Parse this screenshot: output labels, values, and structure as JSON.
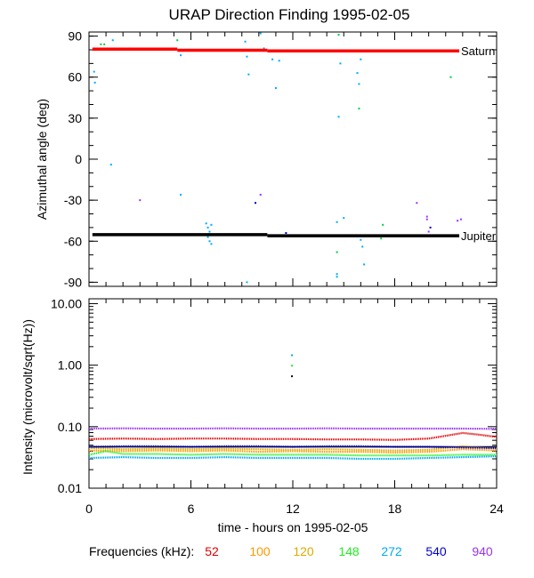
{
  "chart_data": [
    {
      "panel": "top",
      "type": "scatter",
      "title": "URAP Direction Finding  1995-02-05",
      "xlabel": "",
      "ylabel": "Azimuthal angle (deg)",
      "xlim": [
        0,
        24
      ],
      "ylim": [
        -93,
        93
      ],
      "yticks": [
        90,
        60,
        30,
        0,
        -30,
        -60,
        -90
      ],
      "yticks_minor_step": 10,
      "reference_lines": [
        {
          "name": "Saturn",
          "color": "#ff0000",
          "segments": [
            {
              "x": [
                0.2,
                5.2
              ],
              "y": 80.5
            },
            {
              "x": [
                5.2,
                10.5
              ],
              "y": 79.7
            },
            {
              "x": [
                10.5,
                21.8
              ],
              "y": 79.2
            }
          ]
        },
        {
          "name": "Jupiter",
          "color": "#000000",
          "segments": [
            {
              "x": [
                0.2,
                10.5
              ],
              "y": -55.2
            },
            {
              "x": [
                10.5,
                21.8
              ],
              "y": -56.0
            }
          ]
        }
      ],
      "points": [
        {
          "x": 0.3,
          "y": 64,
          "c": "#00aaff"
        },
        {
          "x": 0.35,
          "y": 56,
          "c": "#00aaff"
        },
        {
          "x": 0.7,
          "y": 84,
          "c": "#00cc44"
        },
        {
          "x": 0.9,
          "y": 84,
          "c": "#00cc44"
        },
        {
          "x": 1.4,
          "y": 87,
          "c": "#00aaff"
        },
        {
          "x": 1.3,
          "y": -4,
          "c": "#00aaff"
        },
        {
          "x": 2.4,
          "y": 81,
          "c": "#00aaff"
        },
        {
          "x": 3.0,
          "y": -30,
          "c": "#9933ff"
        },
        {
          "x": 5.2,
          "y": 87,
          "c": "#00cc44"
        },
        {
          "x": 5.4,
          "y": -26,
          "c": "#00aaff"
        },
        {
          "x": 5.4,
          "y": 76,
          "c": "#00aaff"
        },
        {
          "x": 6.9,
          "y": -47,
          "c": "#00aaff"
        },
        {
          "x": 7.0,
          "y": -50,
          "c": "#00aaff"
        },
        {
          "x": 7.1,
          "y": -53,
          "c": "#00aaff"
        },
        {
          "x": 7.0,
          "y": -57,
          "c": "#00aaff"
        },
        {
          "x": 7.1,
          "y": -60,
          "c": "#00aaff"
        },
        {
          "x": 7.2,
          "y": -48,
          "c": "#00aaff"
        },
        {
          "x": 7.2,
          "y": -62,
          "c": "#00aaff"
        },
        {
          "x": 9.2,
          "y": 86,
          "c": "#00aaff"
        },
        {
          "x": 9.3,
          "y": 75,
          "c": "#00aaff"
        },
        {
          "x": 9.4,
          "y": 62,
          "c": "#00aaff"
        },
        {
          "x": 9.3,
          "y": -90,
          "c": "#00aaff"
        },
        {
          "x": 9.8,
          "y": -32,
          "c": "#0000cc"
        },
        {
          "x": 10.1,
          "y": -26,
          "c": "#9933ff"
        },
        {
          "x": 10.1,
          "y": 92,
          "c": "#00aaff"
        },
        {
          "x": 10.3,
          "y": 81,
          "c": "#00aaff"
        },
        {
          "x": 10.8,
          "y": 73,
          "c": "#00aaff"
        },
        {
          "x": 11.2,
          "y": 72,
          "c": "#00aaff"
        },
        {
          "x": 11.0,
          "y": 52,
          "c": "#00aaff"
        },
        {
          "x": 11.6,
          "y": -54,
          "c": "#0000cc"
        },
        {
          "x": 14.7,
          "y": 91,
          "c": "#00cc44"
        },
        {
          "x": 14.6,
          "y": -46,
          "c": "#00aaff"
        },
        {
          "x": 15.0,
          "y": -43,
          "c": "#00aaff"
        },
        {
          "x": 14.8,
          "y": 70,
          "c": "#00aaff"
        },
        {
          "x": 14.7,
          "y": 31,
          "c": "#00aaff"
        },
        {
          "x": 14.6,
          "y": -68,
          "c": "#00cc44"
        },
        {
          "x": 14.6,
          "y": -84,
          "c": "#00aaff"
        },
        {
          "x": 14.6,
          "y": -86,
          "c": "#00aaff"
        },
        {
          "x": 15.8,
          "y": 63,
          "c": "#00aaff"
        },
        {
          "x": 15.9,
          "y": 55,
          "c": "#00aaff"
        },
        {
          "x": 15.9,
          "y": 37,
          "c": "#00cc44"
        },
        {
          "x": 16.0,
          "y": 73,
          "c": "#00aaff"
        },
        {
          "x": 16.0,
          "y": -59,
          "c": "#00aaff"
        },
        {
          "x": 16.1,
          "y": -64,
          "c": "#00aaff"
        },
        {
          "x": 16.2,
          "y": -77,
          "c": "#00aaff"
        },
        {
          "x": 17.3,
          "y": -48,
          "c": "#00cc44"
        },
        {
          "x": 17.2,
          "y": -58,
          "c": "#00cc44"
        },
        {
          "x": 19.3,
          "y": -32,
          "c": "#9933ff"
        },
        {
          "x": 19.9,
          "y": -42,
          "c": "#9933ff"
        },
        {
          "x": 19.9,
          "y": -44,
          "c": "#9933ff"
        },
        {
          "x": 20.1,
          "y": -50,
          "c": "#0000cc"
        },
        {
          "x": 20.0,
          "y": -53,
          "c": "#9933ff"
        },
        {
          "x": 21.3,
          "y": 60,
          "c": "#00cc44"
        },
        {
          "x": 21.7,
          "y": -45,
          "c": "#9933ff"
        },
        {
          "x": 21.9,
          "y": -44,
          "c": "#9933ff"
        }
      ]
    },
    {
      "panel": "bottom",
      "type": "line",
      "title": "",
      "xlabel": "time - hours on 1995-02-05",
      "ylabel": "Intensity (microvolt/sqrt(Hz))",
      "yscale": "log",
      "xlim": [
        0,
        24
      ],
      "ylim": [
        0.01,
        12
      ],
      "xticks": [
        "0",
        "6",
        "12",
        "18",
        "24"
      ],
      "yticks": [
        "10.00",
        "1.00",
        "0.10",
        "0.01"
      ],
      "legend_title": "Frequencies (kHz):",
      "series": [
        {
          "name": "52",
          "color": "#dd0000",
          "x": [
            0,
            2,
            4,
            6,
            8,
            10,
            12,
            14,
            16,
            18,
            20,
            21,
            22,
            23,
            24
          ],
          "y": [
            0.063,
            0.064,
            0.063,
            0.064,
            0.064,
            0.063,
            0.063,
            0.062,
            0.062,
            0.061,
            0.064,
            0.071,
            0.079,
            0.074,
            0.068
          ]
        },
        {
          "name": "100",
          "color": "#ff9900",
          "x": [
            0,
            2,
            4,
            6,
            8,
            10,
            12,
            14,
            16,
            18,
            20,
            21,
            22,
            23,
            24
          ],
          "y": [
            0.041,
            0.04,
            0.041,
            0.04,
            0.041,
            0.039,
            0.04,
            0.039,
            0.039,
            0.038,
            0.039,
            0.041,
            0.043,
            0.042,
            0.041
          ]
        },
        {
          "name": "120",
          "color": "#ddaa00",
          "x": [
            0,
            2,
            4,
            6,
            8,
            10,
            12,
            14,
            16,
            18,
            20,
            21,
            22,
            23,
            24
          ],
          "y": [
            0.045,
            0.043,
            0.044,
            0.043,
            0.044,
            0.043,
            0.042,
            0.043,
            0.042,
            0.041,
            0.042,
            0.045,
            0.048,
            0.046,
            0.044
          ]
        },
        {
          "name": "148",
          "color": "#22ee22",
          "x": [
            0,
            1,
            2,
            4,
            6,
            8,
            10,
            12,
            14,
            16,
            18,
            20,
            22,
            24
          ],
          "y": [
            0.035,
            0.04,
            0.036,
            0.036,
            0.035,
            0.036,
            0.035,
            0.035,
            0.035,
            0.034,
            0.034,
            0.034,
            0.035,
            0.035
          ]
        },
        {
          "name": "272",
          "color": "#00aaee",
          "x": [
            0,
            2,
            4,
            6,
            8,
            10,
            12,
            14,
            16,
            18,
            20,
            22,
            24
          ],
          "y": [
            0.031,
            0.032,
            0.031,
            0.031,
            0.032,
            0.031,
            0.031,
            0.031,
            0.03,
            0.03,
            0.031,
            0.032,
            0.033
          ]
        },
        {
          "name": "540",
          "color": "#0000cc",
          "x": [
            0,
            2,
            4,
            6,
            8,
            10,
            12,
            14,
            16,
            18,
            20,
            22,
            24
          ],
          "y": [
            0.047,
            0.048,
            0.048,
            0.047,
            0.048,
            0.048,
            0.047,
            0.048,
            0.048,
            0.047,
            0.047,
            0.046,
            0.045
          ]
        },
        {
          "name": "940",
          "color": "#9933ee",
          "x": [
            0,
            2,
            4,
            6,
            8,
            10,
            12,
            14,
            16,
            18,
            20,
            22,
            24
          ],
          "y": [
            0.093,
            0.094,
            0.093,
            0.093,
            0.094,
            0.093,
            0.093,
            0.094,
            0.093,
            0.093,
            0.093,
            0.093,
            0.092
          ]
        }
      ],
      "extra_points": [
        {
          "x": 11.95,
          "y": 1.45,
          "c": "#00aaee"
        },
        {
          "x": 11.95,
          "y": 0.98,
          "c": "#22ee22"
        },
        {
          "x": 11.95,
          "y": 0.66,
          "c": "#000000"
        }
      ],
      "reference_lines": [
        {
          "name": "black-level",
          "color": "#000000",
          "y": 0.047
        }
      ]
    }
  ]
}
